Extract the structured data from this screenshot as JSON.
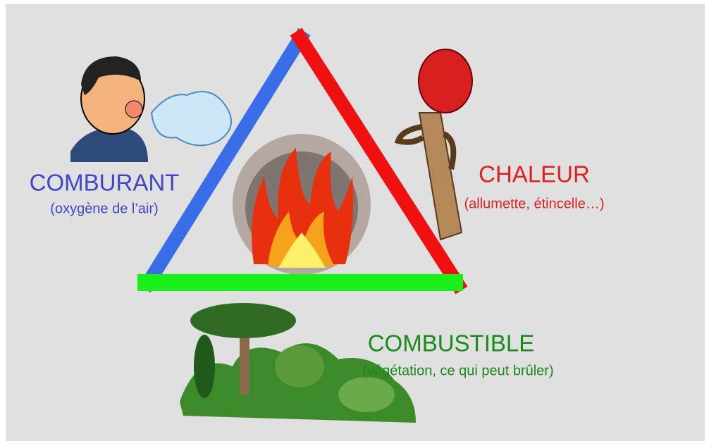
{
  "comburant": {
    "title": "COMBURANT",
    "subtitle": "(oxygène de l’air)"
  },
  "chaleur": {
    "title": "CHALEUR",
    "subtitle": "(allumette, étincelle…)"
  },
  "combustible": {
    "title": "COMBUSTIBLE",
    "subtitle": "(végétation, ce qui peut brûler)"
  }
}
